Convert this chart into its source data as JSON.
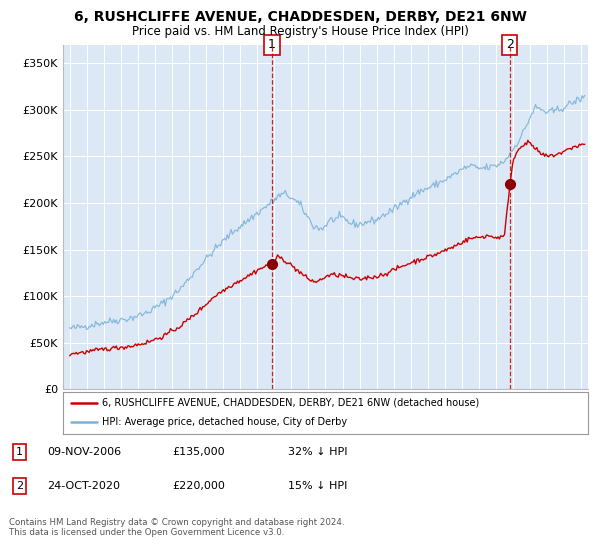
{
  "title": "6, RUSHCLIFFE AVENUE, CHADDESDEN, DERBY, DE21 6NW",
  "subtitle": "Price paid vs. HM Land Registry's House Price Index (HPI)",
  "background_color": "#ffffff",
  "plot_bg_color": "#dce8f5",
  "grid_color": "#ffffff",
  "hpi_color": "#7ab3d9",
  "price_color": "#cc0000",
  "sale1_date_x": 2006.86,
  "sale1_price": 135000,
  "sale2_date_x": 2020.81,
  "sale2_price": 220000,
  "legend_line1": "6, RUSHCLIFFE AVENUE, CHADDESDEN, DERBY, DE21 6NW (detached house)",
  "legend_line2": "HPI: Average price, detached house, City of Derby",
  "ann1_label": "1",
  "ann1_date": "09-NOV-2006",
  "ann1_price": "£135,000",
  "ann1_pct": "32% ↓ HPI",
  "ann2_label": "2",
  "ann2_date": "24-OCT-2020",
  "ann2_price": "£220,000",
  "ann2_pct": "15% ↓ HPI",
  "footer": "Contains HM Land Registry data © Crown copyright and database right 2024.\nThis data is licensed under the Open Government Licence v3.0.",
  "ylim": [
    0,
    370000
  ],
  "xlim_start": 1994.6,
  "xlim_end": 2025.4,
  "yticks": [
    0,
    50000,
    100000,
    150000,
    200000,
    250000,
    300000,
    350000
  ],
  "ytick_labels": [
    "£0",
    "£50K",
    "£100K",
    "£150K",
    "£200K",
    "£250K",
    "£300K",
    "£350K"
  ],
  "xticks": [
    1995,
    1996,
    1997,
    1998,
    1999,
    2000,
    2001,
    2002,
    2003,
    2004,
    2005,
    2006,
    2007,
    2008,
    2009,
    2010,
    2011,
    2012,
    2013,
    2014,
    2015,
    2016,
    2017,
    2018,
    2019,
    2020,
    2021,
    2022,
    2023,
    2024,
    2025
  ]
}
